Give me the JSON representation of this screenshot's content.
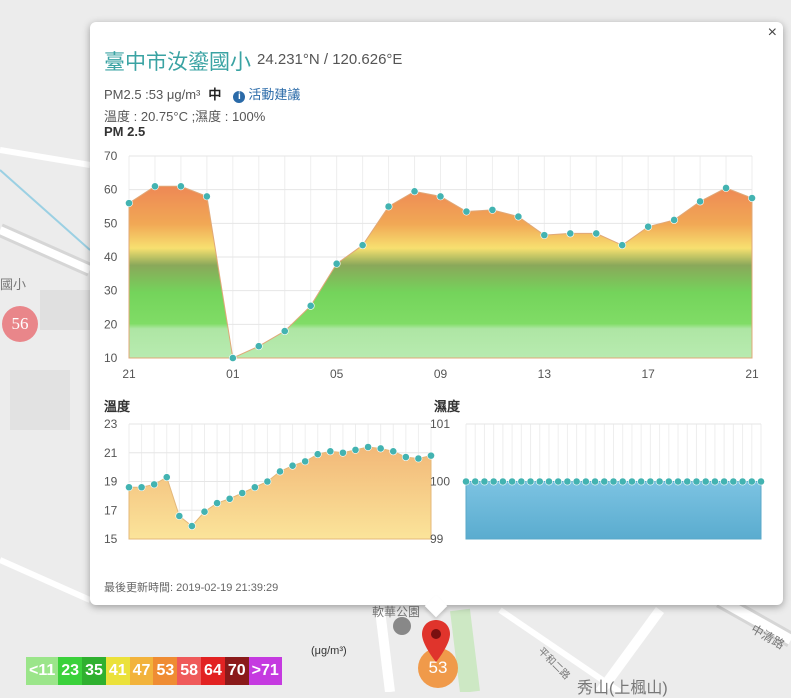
{
  "map": {
    "labels": {
      "school": "國小",
      "park": "軟華公園",
      "road1": "中清路",
      "road2": "平和二路",
      "town": "秀山(上楓山)"
    },
    "markers": [
      {
        "value": "56",
        "color": "#e9868a"
      },
      {
        "value": "53",
        "color": "#f09a4a"
      }
    ]
  },
  "popup": {
    "close_icon": "×",
    "title": "臺中市汝鎏國小",
    "coords": "24.231°N / 120.626°E",
    "pm_text": "PM2.5 :53 μg/m³",
    "pm_level": "中",
    "info_icon": "i",
    "advice_link": "活動建議",
    "temp_humidity": "溫度 : 20.75°C ;濕度 : 100%",
    "updated": "最後更新時間: 2019-02-19 21:39:29"
  },
  "chart_data": [
    {
      "type": "area",
      "title": "PM 2.5",
      "x_tick_labels": [
        "21",
        "01",
        "05",
        "09",
        "13",
        "17",
        "21"
      ],
      "ylim": [
        10,
        70
      ],
      "y_ticks": [
        10,
        20,
        30,
        40,
        50,
        60,
        70
      ],
      "values": [
        56,
        61,
        61,
        58,
        10,
        13.5,
        18,
        25.5,
        38,
        43.5,
        55,
        59.5,
        58,
        53.5,
        54,
        52,
        46.5,
        47,
        47,
        43.5,
        49,
        51,
        56.5,
        60.5,
        57.5
      ],
      "grid": true
    },
    {
      "type": "area",
      "title": "溫度",
      "ylim": [
        15,
        23
      ],
      "y_ticks": [
        15,
        17,
        19,
        21,
        23
      ],
      "values": [
        18.6,
        18.6,
        18.8,
        19.3,
        16.6,
        15.9,
        16.9,
        17.5,
        17.8,
        18.2,
        18.6,
        19,
        19.7,
        20.1,
        20.4,
        20.9,
        21.1,
        21,
        21.2,
        21.4,
        21.3,
        21.1,
        20.7,
        20.6,
        20.8
      ],
      "grid": true
    },
    {
      "type": "area",
      "title": "濕度",
      "ylim": [
        99,
        101
      ],
      "y_ticks": [
        99,
        100,
        101
      ],
      "values": [
        100,
        100,
        100,
        100,
        100,
        100,
        100,
        100,
        100,
        100,
        100,
        100,
        100,
        100,
        100,
        100,
        100,
        100,
        100,
        100,
        100,
        100,
        100,
        100,
        100,
        100,
        100,
        100,
        100,
        100,
        100,
        100,
        100
      ],
      "grid": true
    }
  ],
  "legend": {
    "unit": "(μg/m³)",
    "items": [
      {
        "label": "<11",
        "color": "#9be58a"
      },
      {
        "label": "23",
        "color": "#3bd13b"
      },
      {
        "label": "35",
        "color": "#2fb02f"
      },
      {
        "label": "41",
        "color": "#ebe13a"
      },
      {
        "label": "47",
        "color": "#f2b33c"
      },
      {
        "label": "53",
        "color": "#ef8c33"
      },
      {
        "label": "58",
        "color": "#ef5a5a"
      },
      {
        "label": "64",
        "color": "#e22222"
      },
      {
        "label": "70",
        "color": "#8a1a1a"
      },
      {
        "label": ">71",
        "color": "#c53ae0"
      }
    ]
  }
}
